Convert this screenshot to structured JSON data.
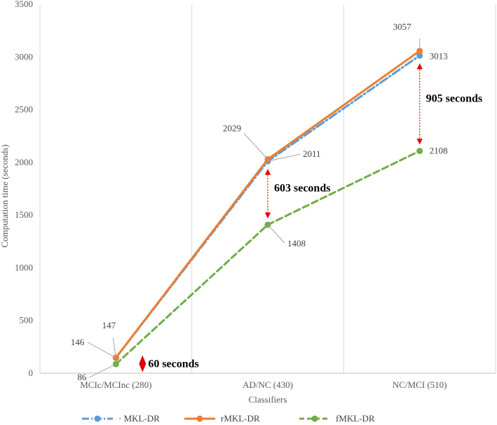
{
  "chart_data": {
    "type": "line",
    "categories": [
      "MCIc/MCInc (280)",
      "AD/NC (430)",
      "NC/MCI (510)"
    ],
    "xlabel": "Classifiers",
    "ylabel": "Computation time (seconds)",
    "ylim": [
      0,
      3500
    ],
    "yticks": [
      0,
      500,
      1000,
      1500,
      2000,
      2500,
      3000,
      3500
    ],
    "grid": "vertical",
    "legend_position": "bottom",
    "series": [
      {
        "name": "MKL-DR",
        "legend_label": "· MKL-DR",
        "color": "#5B9BD5",
        "dash": "dash-dot",
        "values": [
          146,
          2011,
          3013
        ]
      },
      {
        "name": "rMKL-DR",
        "legend_label": "rMKL-DR",
        "color": "#ED7D31",
        "dash": "solid",
        "values": [
          147,
          2029,
          3057
        ]
      },
      {
        "name": "fMKL-DR",
        "legend_label": "fMKL-DR",
        "color": "#70AD47",
        "dash": "dashed",
        "values": [
          86,
          1408,
          2108
        ]
      }
    ],
    "data_labels": [
      {
        "series": 0,
        "index": 0,
        "text": "146"
      },
      {
        "series": 1,
        "index": 0,
        "text": "147"
      },
      {
        "series": 2,
        "index": 0,
        "text": "86"
      },
      {
        "series": 1,
        "index": 1,
        "text": "2029"
      },
      {
        "series": 0,
        "index": 1,
        "text": "2011"
      },
      {
        "series": 2,
        "index": 1,
        "text": "1408"
      },
      {
        "series": 1,
        "index": 2,
        "text": "3057"
      },
      {
        "series": 0,
        "index": 2,
        "text": "3013"
      },
      {
        "series": 2,
        "index": 2,
        "text": "2108"
      }
    ],
    "annotations": [
      {
        "text": "60 seconds",
        "index": 0,
        "from": 147,
        "to": 86
      },
      {
        "text": "603 seconds",
        "index": 1,
        "from": 2011,
        "to": 1408
      },
      {
        "text": "905 seconds",
        "index": 2,
        "from": 3013,
        "to": 2108
      }
    ]
  }
}
